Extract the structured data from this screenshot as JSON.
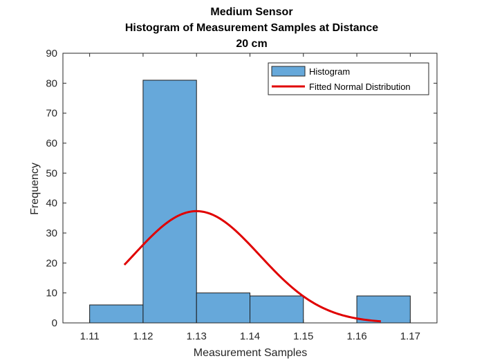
{
  "chart_data": {
    "type": "bar",
    "title_lines": [
      "Medium Sensor",
      "Histogram of Measurement Samples at Distance",
      "20 cm"
    ],
    "xlabel": "Measurement Samples",
    "ylabel": "Frequency",
    "xlim": [
      1.105,
      1.175
    ],
    "ylim": [
      0,
      90
    ],
    "xticks": [
      "1.11",
      "1.12",
      "1.13",
      "1.14",
      "1.15",
      "1.16",
      "1.17"
    ],
    "yticks": [
      "0",
      "10",
      "20",
      "30",
      "40",
      "50",
      "60",
      "70",
      "80",
      "90"
    ],
    "grid": false,
    "legend_position": "top-right",
    "series": [
      {
        "name": "Histogram",
        "kind": "histogram",
        "color": "#66A8DA",
        "bins": [
          {
            "x0": 1.11,
            "x1": 1.12,
            "count": 6
          },
          {
            "x0": 1.12,
            "x1": 1.13,
            "count": 81
          },
          {
            "x0": 1.13,
            "x1": 1.14,
            "count": 10
          },
          {
            "x0": 1.14,
            "x1": 1.15,
            "count": 9
          },
          {
            "x0": 1.15,
            "x1": 1.16,
            "count": 0
          },
          {
            "x0": 1.16,
            "x1": 1.17,
            "count": 9
          }
        ]
      },
      {
        "name": "Fitted Normal Distribution",
        "kind": "line",
        "color": "#E00000",
        "mean": 1.13,
        "peak": 37.3,
        "sigma": 0.0118,
        "x_start": 1.1165,
        "x_end": 1.1645
      }
    ]
  }
}
